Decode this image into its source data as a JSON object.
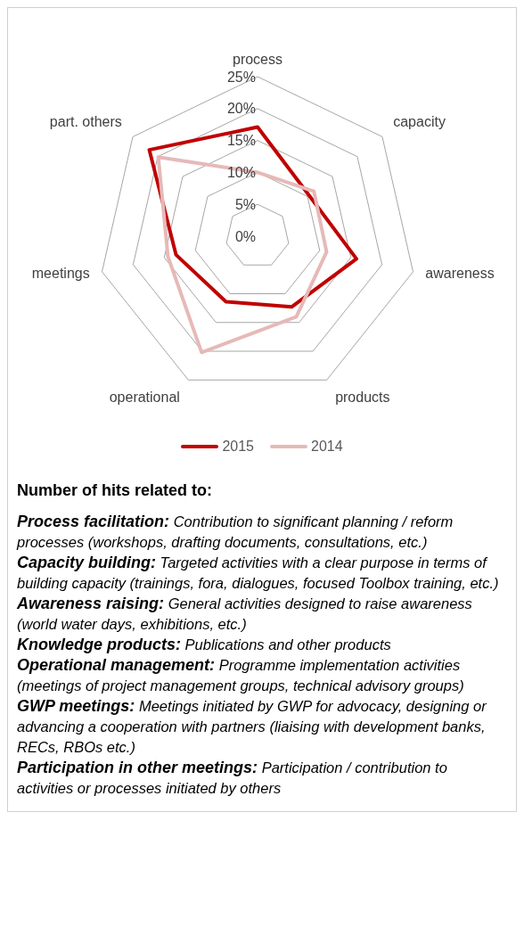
{
  "chart_data": {
    "type": "radar",
    "categories": [
      "process",
      "capacity",
      "awareness",
      "products",
      "operational",
      "meetings",
      "part. others"
    ],
    "series": [
      {
        "name": "2015",
        "color": "#c00000",
        "values": [
          17.1,
          10.3,
          15.9,
          12.3,
          11.4,
          13.1,
          21.7
        ]
      },
      {
        "name": "2014",
        "color": "#e6b9b8",
        "values": [
          10,
          11.3,
          11.1,
          14,
          20.2,
          14.4,
          19.9
        ]
      }
    ],
    "ylim": [
      0,
      25
    ],
    "yticks": [
      {
        "value": 0,
        "label": "0%"
      },
      {
        "value": 5,
        "label": "5%"
      },
      {
        "value": 10,
        "label": "10%"
      },
      {
        "value": 15,
        "label": "15%"
      },
      {
        "value": 20,
        "label": "20%"
      },
      {
        "value": 25,
        "label": "25%"
      }
    ],
    "grid": true,
    "legend": "bottom",
    "marker": "none",
    "line_style": "solid",
    "annotations": [
      "Number of hits related to:",
      "Process facilitation: Contribution to significant planning / reform processes (workshops, drafting documents, consultations, etc.)",
      "Capacity building: Targeted activities with a clear purpose in terms of building capacity (trainings, fora, dialogues, focused Toolbox training, etc.)",
      "Awareness raising: General activities designed to raise awareness (world water days, exhibitions, etc.)",
      "Knowledge products: Publications and other products",
      "Operational management: Programme implementation activities (meetings of project management groups, technical advisory groups)",
      "GWP meetings: Meetings initiated by GWP for advocacy, designing or advancing a cooperation with partners (liaising with development banks, RECs, RBOs etc.)",
      "Participation in other meetings: Participation / contribution to activities or processes initiated by others"
    ]
  }
}
